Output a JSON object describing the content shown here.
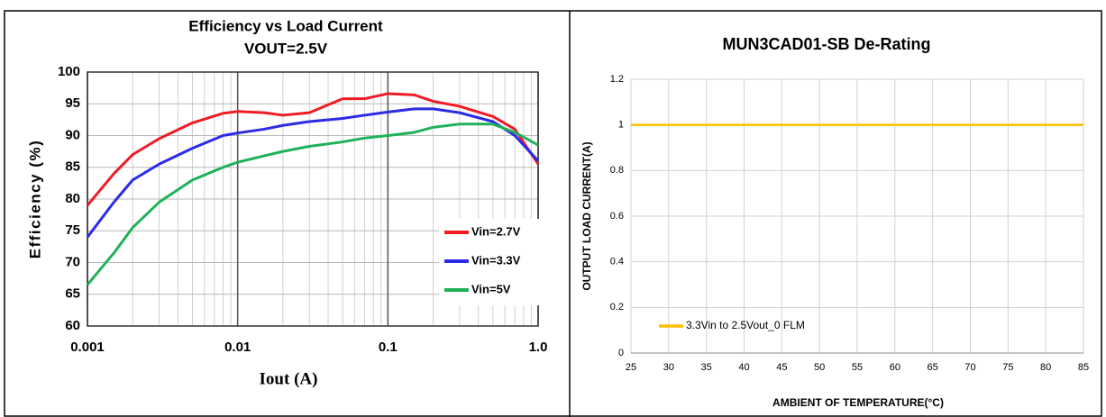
{
  "chart_data": [
    {
      "type": "line",
      "title": "Efficiency vs Load Current",
      "subtitle": "VOUT=2.5V",
      "x_label": "Iout (A)",
      "y_label": "Efficiency (%)",
      "xscale": "log",
      "grid": true,
      "legend": "lower right",
      "xlim": [
        0.001,
        1
      ],
      "xticks": [
        0.001,
        0.01,
        0.1,
        {
          "value": 1,
          "label": "1.0"
        }
      ],
      "xminor": [
        0.002,
        0.003,
        0.004,
        0.005,
        0.006,
        0.007,
        0.008,
        0.009,
        0.02,
        0.03,
        0.04,
        0.05,
        0.06,
        0.07,
        0.08,
        0.09,
        0.2,
        0.3,
        0.4,
        0.5,
        0.6,
        0.7,
        0.8,
        0.9
      ],
      "ylim": [
        60,
        100
      ],
      "yticks": [
        60,
        65,
        70,
        75,
        80,
        85,
        90,
        95,
        100
      ],
      "x": [
        0.001,
        0.0015,
        0.002,
        0.003,
        0.005,
        0.008,
        0.01,
        0.015,
        0.02,
        0.03,
        0.05,
        0.07,
        0.1,
        0.15,
        0.2,
        0.3,
        0.5,
        0.7,
        1
      ],
      "series": [
        {
          "name": "Vin=2.7V",
          "color": "#ee1c25",
          "values": [
            79,
            84,
            87,
            89.5,
            92,
            93.5,
            93.8,
            93.6,
            93.2,
            93.6,
            95.8,
            95.8,
            96.6,
            96.4,
            95.4,
            94.6,
            93,
            91,
            85.5
          ]
        },
        {
          "name": "Vin=3.3V",
          "color": "#2b2be8",
          "values": [
            74,
            79.5,
            83,
            85.5,
            88,
            90,
            90.4,
            91,
            91.6,
            92.2,
            92.7,
            93.2,
            93.7,
            94.2,
            94.2,
            93.6,
            92.2,
            90,
            86
          ]
        },
        {
          "name": "Vin=5V",
          "color": "#1fb15a",
          "values": [
            66.5,
            71.5,
            75.5,
            79.5,
            83,
            85,
            85.8,
            86.8,
            87.5,
            88.3,
            89,
            89.6,
            90,
            90.5,
            91.3,
            91.8,
            91.8,
            90.5,
            88.5
          ]
        }
      ]
    },
    {
      "type": "line",
      "title": "MUN3CAD01-SB De-Rating",
      "x_label": "AMBIENT OF TEMPERATURE(°C)",
      "y_label": "OUTPUT LOAD CURRENT(A)",
      "xscale": "linear",
      "grid": true,
      "legend": "lower left",
      "xlim": [
        25,
        85
      ],
      "xticks": [
        25,
        30,
        35,
        40,
        45,
        50,
        55,
        60,
        65,
        70,
        75,
        80,
        85
      ],
      "ylim": [
        0,
        1.2
      ],
      "yticks": [
        0,
        0.2,
        0.4,
        0.6,
        0.8,
        1,
        1.2
      ],
      "x": [
        25,
        85
      ],
      "series": [
        {
          "name": "3.3Vin to 2.5Vout_0 FLM",
          "color": "#ffc000",
          "values": [
            1,
            1
          ]
        }
      ]
    }
  ]
}
